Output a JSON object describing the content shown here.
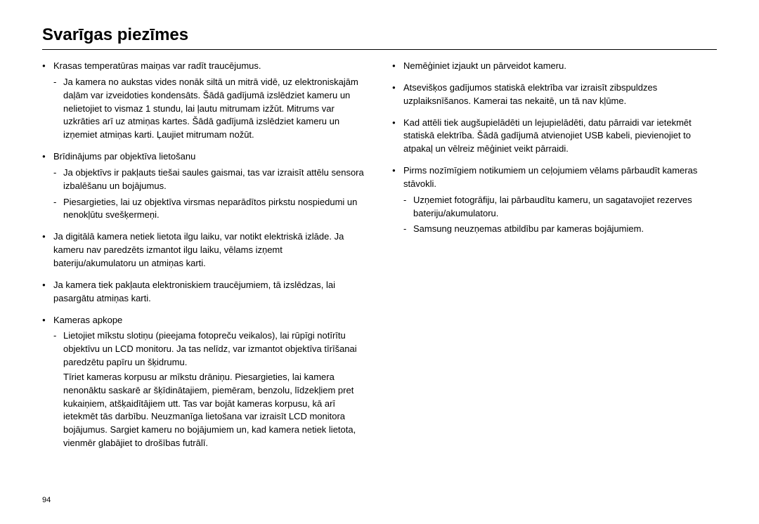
{
  "title": "Svarīgas piezīmes",
  "page_number": "94",
  "style": {
    "bg": "#ffffff",
    "text_color": "#000000",
    "title_fontsize_pt": 18,
    "body_fontsize_pt": 10,
    "rule_color": "#000000"
  },
  "left": {
    "b1": {
      "head": "Krasas temperatūras maiņas var radīt traucējumus.",
      "s1": "Ja kamera no aukstas vides nonāk siltā un mitrā vidē, uz elektroniskajām daļām var izveidoties kondensāts. Šādā gadījumā izslēdziet kameru un nelietojiet to vismaz 1 stundu, lai ļautu mitrumam izžūt. Mitrums var uzkrāties arī uz atmiņas kartes. Šādā gadījumā izslēdziet kameru un izņemiet atmiņas karti. Ļaujiet mitrumam nožūt."
    },
    "b2": {
      "head": "Brīdinājums par objektīva lietošanu",
      "s1": "Ja objektīvs ir pakļauts tiešai saules gaismai, tas var izraisīt attēlu sensora izbalēšanu un bojājumus.",
      "s2": "Piesargieties, lai uz objektīva virsmas neparādītos pirkstu nospiedumi un nenokļūtu svešķermeņi."
    },
    "b3": {
      "head": "Ja digitālā kamera netiek lietota ilgu laiku, var notikt elektriskā izlāde. Ja kameru nav paredzēts izmantot ilgu laiku, vēlams izņemt bateriju/akumulatoru un atmiņas karti."
    },
    "b4": {
      "head": "Ja kamera tiek pakļauta elektroniskiem traucējumiem, tā izslēdzas, lai pasargātu atmiņas karti."
    },
    "b5": {
      "head": "Kameras apkope",
      "s1": "Lietojiet mīkstu slotiņu (pieejama fotopreču veikalos), lai rūpīgi notīrītu objektīvu un LCD monitoru. Ja tas nelīdz, var izmantot objektīva tīrīšanai paredzētu papīru un šķidrumu.",
      "extra": "Tīriet kameras korpusu ar mīkstu drāniņu. Piesargieties, lai kamera nenonāktu saskarē ar šķīdinātajiem, piemēram, benzolu, līdzekļiem pret kukaiņiem, atšķaidītājiem utt. Tas var bojāt kameras korpusu, kā arī ietekmēt tās darbību. Neuzmanīga lietošana var izraisīt LCD monitora bojājumus. Sargiet kameru no bojājumiem un, kad kamera netiek lietota, vienmēr glabājiet to drošības futrālī."
    }
  },
  "right": {
    "b1": {
      "head": "Nemēģiniet izjaukt un pārveidot kameru."
    },
    "b2": {
      "head": "Atsevišķos gadījumos statiskā elektrība var izraisīt zibspuldzes uzplaiksnīšanos. Kamerai tas nekaitē, un tā nav kļūme."
    },
    "b3": {
      "head": "Kad attēli tiek augšupielādēti un lejupielādēti, datu pārraidi var ietekmēt statiskā elektrība. Šādā gadījumā atvienojiet USB kabeli, pievienojiet to atpakaļ un vēlreiz mēģiniet veikt pārraidi."
    },
    "b4": {
      "head": "Pirms nozīmīgiem notikumiem un ceļojumiem vēlams pārbaudīt kameras stāvokli.",
      "s1": "Uzņemiet fotogrāfiju, lai pārbaudītu kameru, un sagatavojiet rezerves bateriju/akumulatoru.",
      "s2": "Samsung neuzņemas atbildību par kameras bojājumiem."
    }
  }
}
